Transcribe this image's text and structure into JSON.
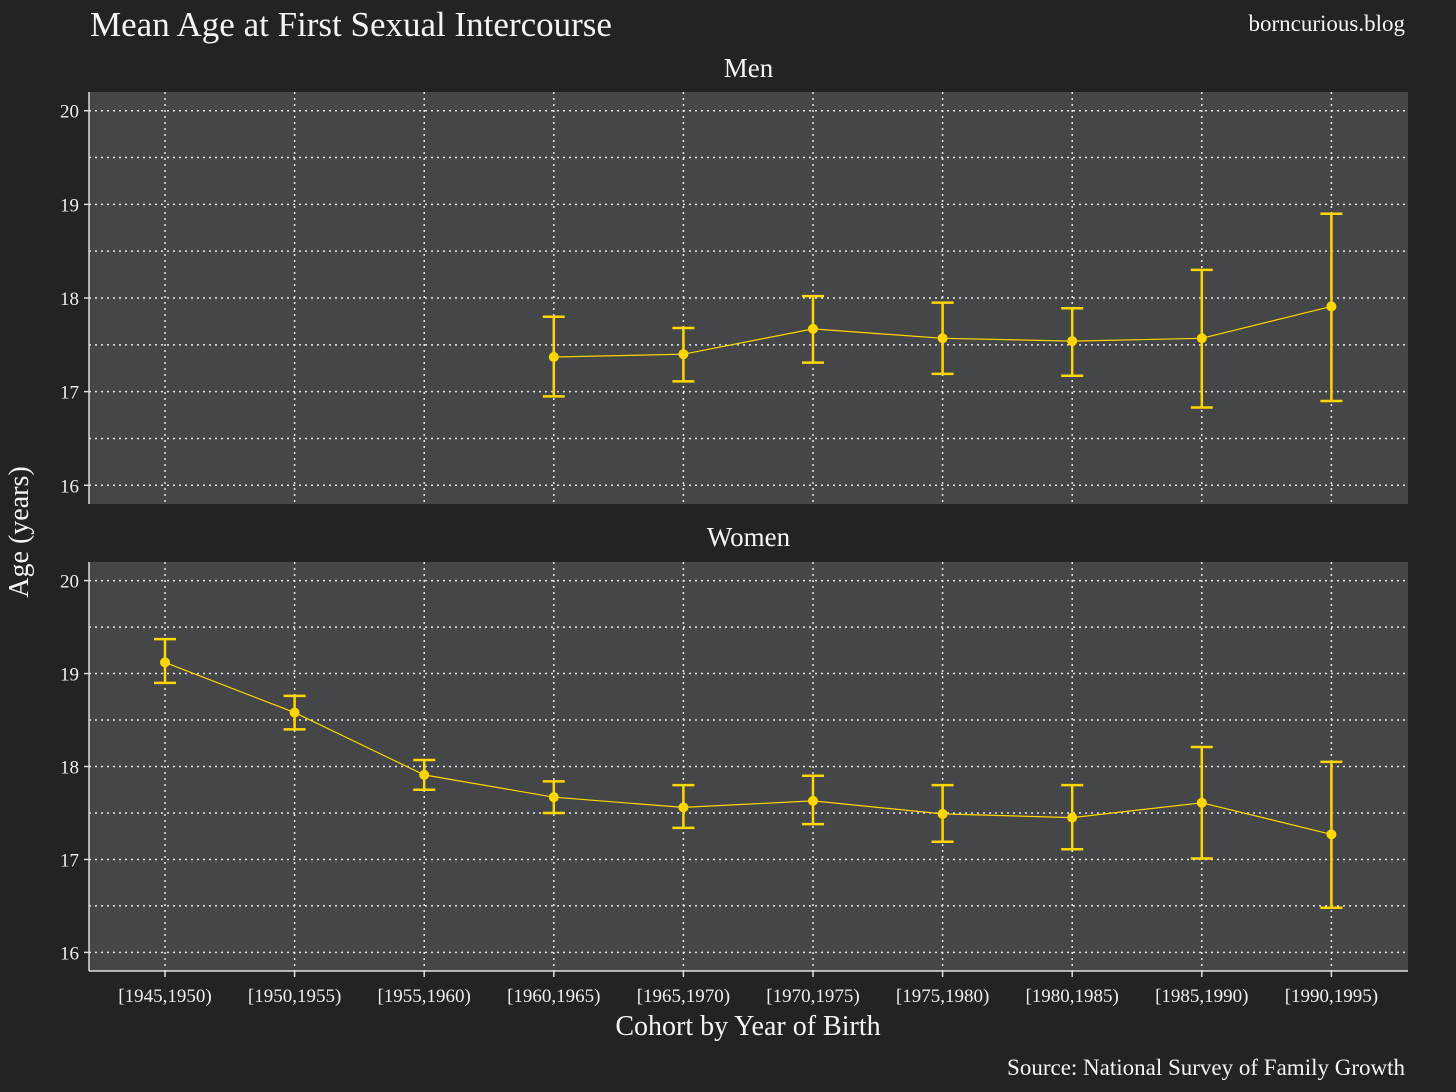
{
  "header": {
    "title": "Mean Age at First Sexual Intercourse",
    "blog": "borncurious.blog"
  },
  "footer": {
    "source": "Source: National Survey of Family Growth"
  },
  "colors": {
    "background": "#222325",
    "panel": "#454648",
    "grid": "#e6e6e6",
    "series": "#ffd700",
    "axis": "#dddddd"
  },
  "chart_data": {
    "type": "line",
    "xlabel": "Cohort by Year of Birth",
    "ylabel": "Age (years)",
    "ylim": [
      15.8,
      20.2
    ],
    "yticks": [
      16,
      17,
      18,
      19,
      20
    ],
    "grid": true,
    "categories": [
      "[1945,1950)",
      "[1950,1955)",
      "[1955,1960)",
      "[1960,1965)",
      "[1965,1970)",
      "[1970,1975)",
      "[1975,1980)",
      "[1980,1985)",
      "[1985,1990)",
      "[1990,1995)"
    ],
    "facets": [
      {
        "name": "Men",
        "values": [
          null,
          null,
          null,
          17.37,
          17.4,
          17.67,
          17.57,
          17.54,
          17.57,
          17.91
        ],
        "lower": [
          null,
          null,
          null,
          16.95,
          17.11,
          17.31,
          17.19,
          17.17,
          16.83,
          16.9
        ],
        "upper": [
          null,
          null,
          null,
          17.8,
          17.68,
          18.02,
          17.95,
          17.89,
          18.3,
          18.9
        ]
      },
      {
        "name": "Women",
        "values": [
          19.12,
          18.58,
          17.91,
          17.67,
          17.56,
          17.63,
          17.49,
          17.45,
          17.61,
          17.27
        ],
        "lower": [
          18.9,
          18.4,
          17.75,
          17.5,
          17.34,
          17.38,
          17.19,
          17.11,
          17.01,
          16.48
        ],
        "upper": [
          19.37,
          18.76,
          18.07,
          17.84,
          17.8,
          17.9,
          17.8,
          17.8,
          18.21,
          18.05
        ]
      }
    ]
  }
}
